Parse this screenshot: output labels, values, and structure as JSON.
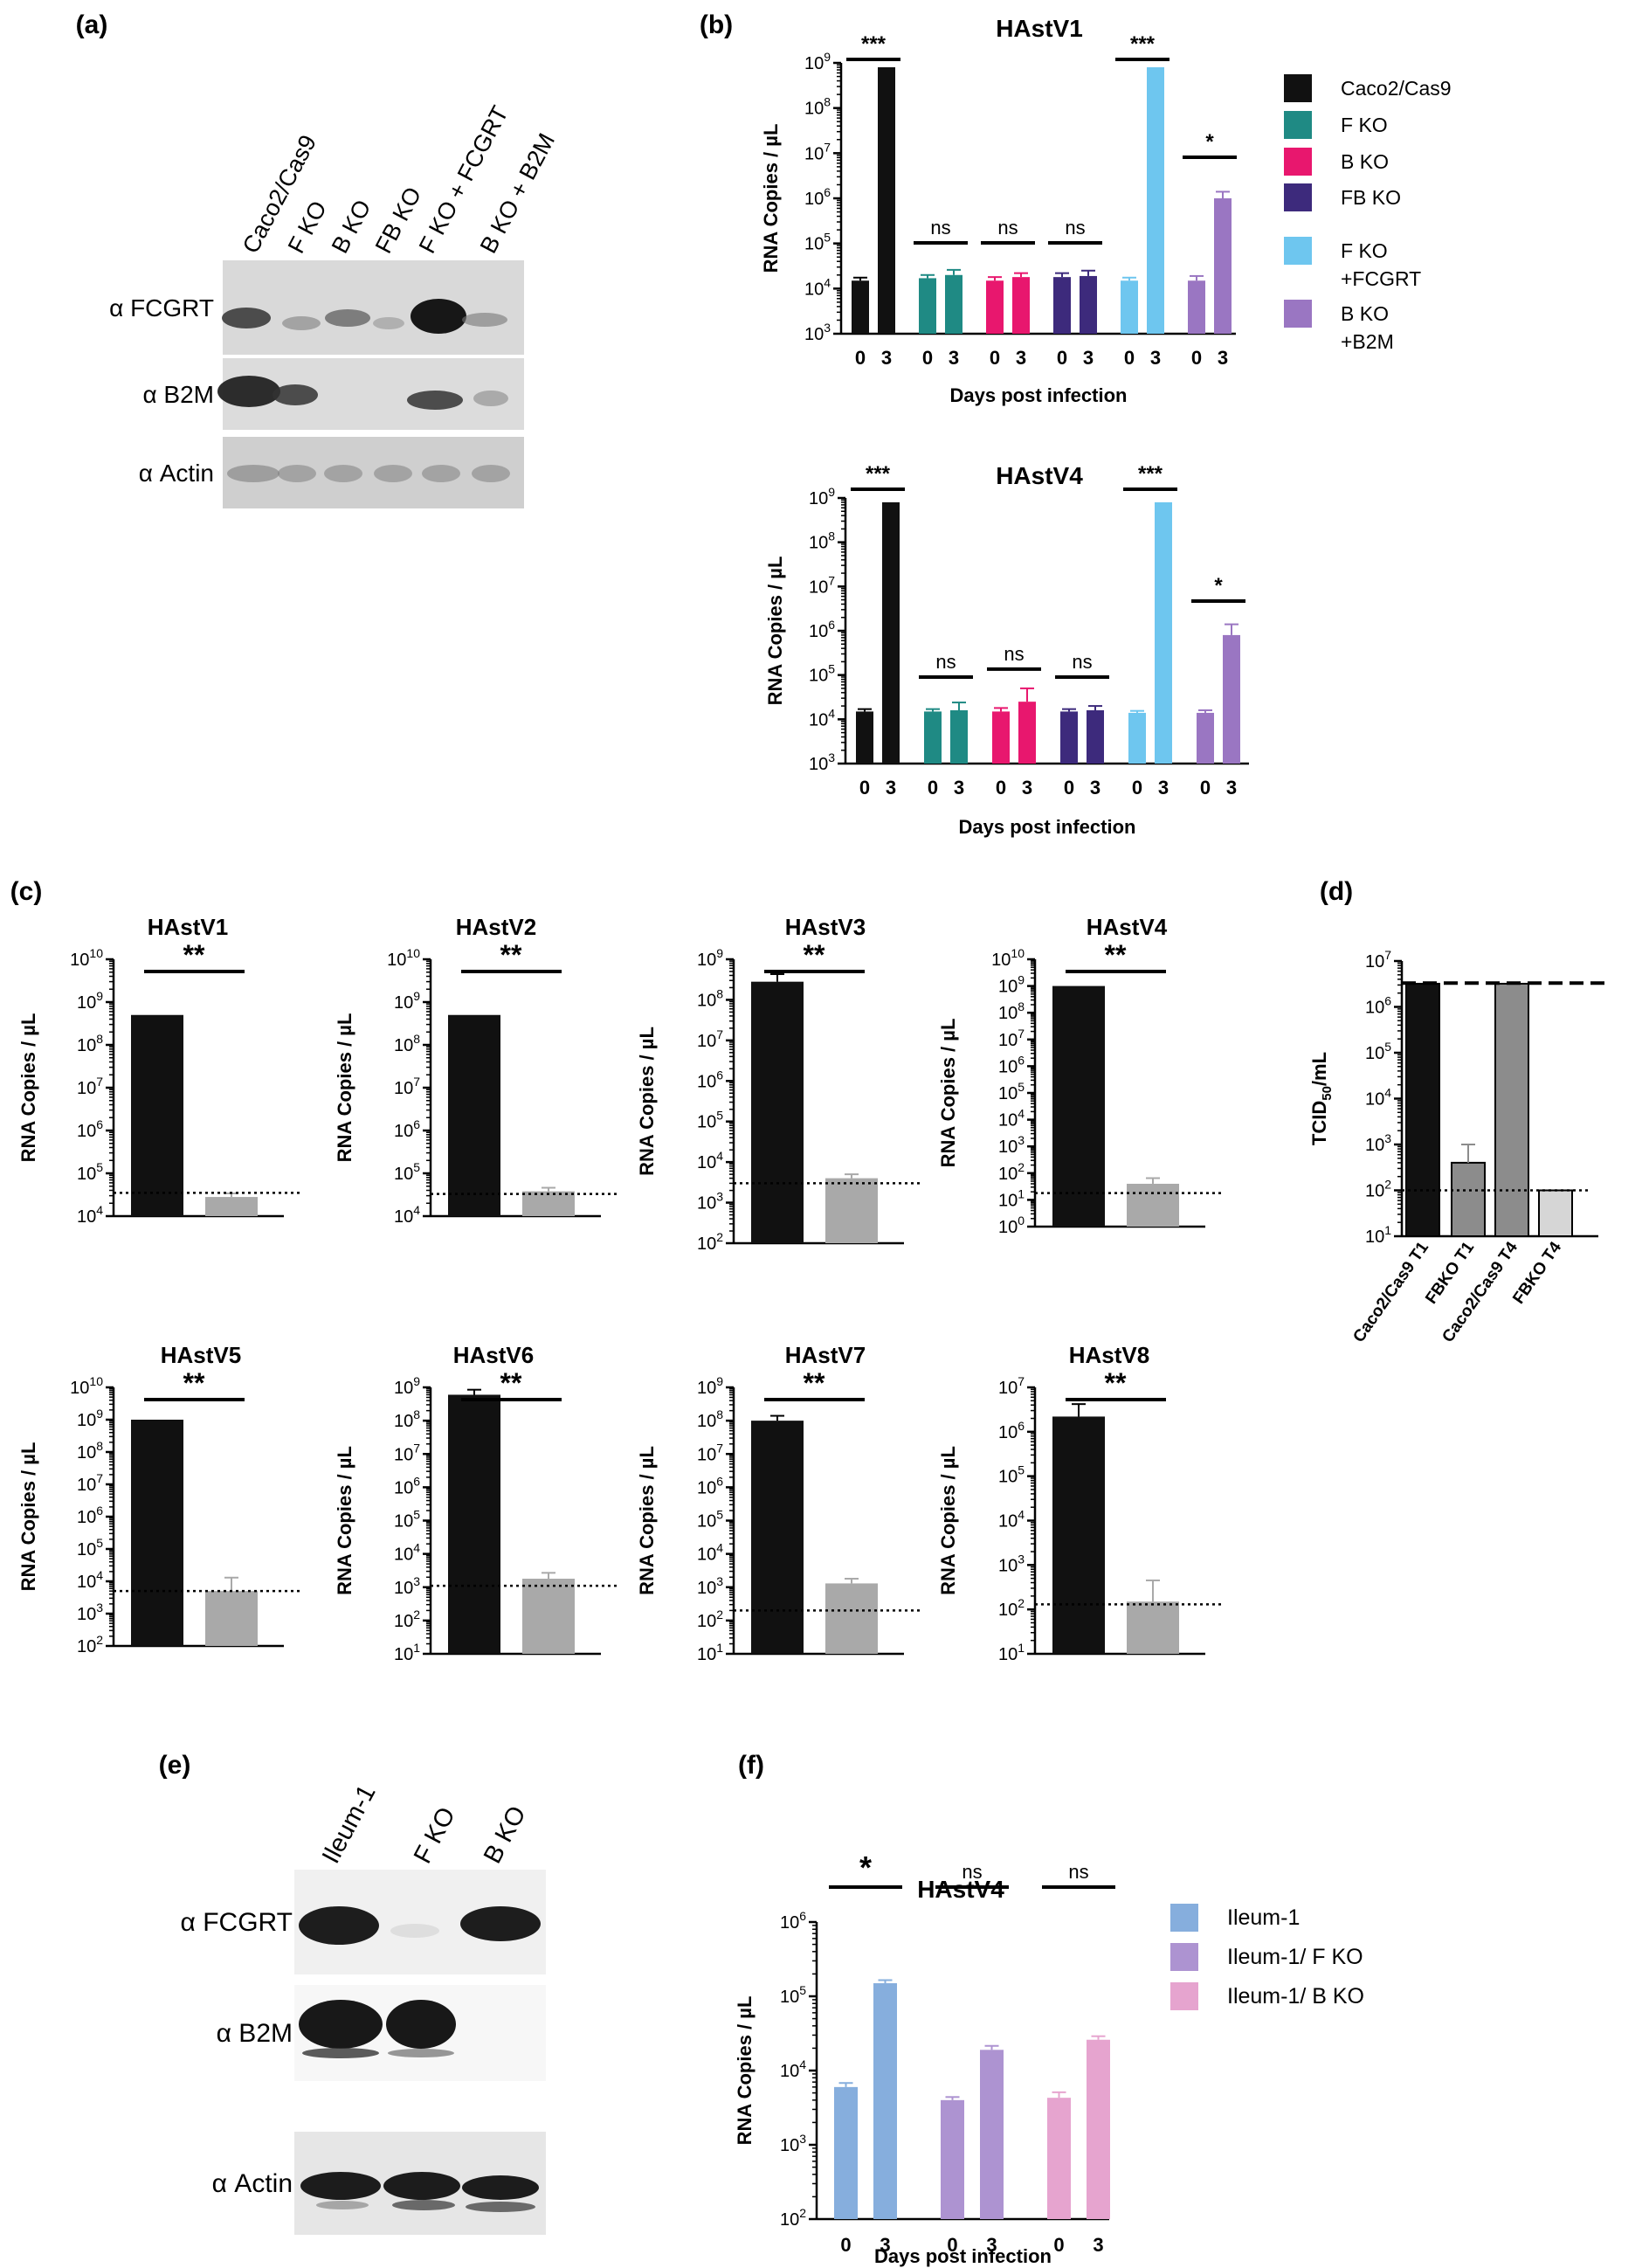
{
  "panel_labels": {
    "a": "(a)",
    "b": "(b)",
    "c": "(c)",
    "d": "(d)",
    "e": "(e)",
    "f": "(f)"
  },
  "colors": {
    "black": "#111111",
    "teal": "#1f8a84",
    "pink": "#e8176e",
    "indigo": "#3d2a7c",
    "lightblue": "#6ec6ef",
    "lavender": "#9a76c2",
    "gray": "#a9a9a9",
    "darkgray": "#8c8c8c",
    "lightgray": "#d6d6d6",
    "f_blue": "#86aedd",
    "f_purple": "#ad93d1",
    "f_pink": "#e6a4cf"
  },
  "blot_a": {
    "lanes": [
      "Caco2/Cas9",
      "F KO",
      "B KO",
      "FB KO",
      "F KO + FCGRT",
      "B KO + B2M"
    ],
    "rows": [
      "α FCGRT",
      "α B2M",
      "α Actin"
    ]
  },
  "blot_e": {
    "lanes": [
      "Ileum-1",
      "F KO",
      "B KO"
    ],
    "rows": [
      "α FCGRT",
      "α B2M",
      "α Actin"
    ]
  },
  "legend_b": [
    "Caco2/Cas9",
    "F KO",
    "B KO",
    "FB KO",
    "F KO\n+FCGRT",
    "B KO\n+B2M"
  ],
  "legend_f": [
    "Ileum-1",
    "Ileum-1/ F KO",
    "Ileum-1/ B KO"
  ],
  "chart_data": [
    {
      "id": "b1",
      "type": "bar",
      "title": "HAstV1",
      "ylabel": "RNA Copies / µL",
      "xlabel": "Days post infection",
      "scale": "log",
      "ylim_exp": [
        3,
        9
      ],
      "groups": [
        {
          "name": "Caco2/Cas9",
          "color": "black",
          "x": [
            "0",
            "3"
          ],
          "values": [
            15000,
            800000000
          ],
          "err": [
            2500,
            0
          ],
          "sig": "***"
        },
        {
          "name": "F KO",
          "color": "teal",
          "x": [
            "0",
            "3"
          ],
          "values": [
            17000,
            20000
          ],
          "err": [
            3000,
            6000
          ],
          "sig": "ns"
        },
        {
          "name": "B KO",
          "color": "pink",
          "x": [
            "0",
            "3"
          ],
          "values": [
            15000,
            18000
          ],
          "err": [
            3000,
            4000
          ],
          "sig": "ns"
        },
        {
          "name": "FB KO",
          "color": "indigo",
          "x": [
            "0",
            "3"
          ],
          "values": [
            18000,
            19000
          ],
          "err": [
            4000,
            6000
          ],
          "sig": "ns"
        },
        {
          "name": "F KO +FCGRT",
          "color": "lightblue",
          "x": [
            "0",
            "3"
          ],
          "values": [
            15000,
            800000000
          ],
          "err": [
            2500,
            0
          ],
          "sig": "***"
        },
        {
          "name": "B KO +B2M",
          "color": "lavender",
          "x": [
            "0",
            "3"
          ],
          "values": [
            15000,
            1000000
          ],
          "err": [
            4000,
            400000
          ],
          "sig": "*"
        }
      ]
    },
    {
      "id": "b4",
      "type": "bar",
      "title": "HAstV4",
      "ylabel": "RNA Copies / µL",
      "xlabel": "Days post infection",
      "scale": "log",
      "ylim_exp": [
        3,
        9
      ],
      "groups": [
        {
          "name": "Caco2/Cas9",
          "color": "black",
          "x": [
            "0",
            "3"
          ],
          "values": [
            15000,
            800000000
          ],
          "err": [
            2000,
            0
          ],
          "sig": "***"
        },
        {
          "name": "F KO",
          "color": "teal",
          "x": [
            "0",
            "3"
          ],
          "values": [
            15000,
            16000
          ],
          "err": [
            2000,
            8000
          ],
          "sig": "ns"
        },
        {
          "name": "B KO",
          "color": "pink",
          "x": [
            "0",
            "3"
          ],
          "values": [
            15000,
            25000
          ],
          "err": [
            3000,
            25000
          ],
          "sig": "ns"
        },
        {
          "name": "FB KO",
          "color": "indigo",
          "x": [
            "0",
            "3"
          ],
          "values": [
            15000,
            16000
          ],
          "err": [
            2000,
            4000
          ],
          "sig": "ns"
        },
        {
          "name": "F KO +FCGRT",
          "color": "lightblue",
          "x": [
            "0",
            "3"
          ],
          "values": [
            14000,
            800000000
          ],
          "err": [
            1500,
            0
          ],
          "sig": "***"
        },
        {
          "name": "B KO +B2M",
          "color": "lavender",
          "x": [
            "0",
            "3"
          ],
          "values": [
            14000,
            800000
          ],
          "err": [
            2000,
            600000
          ],
          "sig": "*"
        }
      ]
    },
    {
      "id": "c1",
      "type": "bar",
      "title": "HAstV1",
      "ylabel": "RNA Copies / µL",
      "scale": "log",
      "ylim_exp": [
        4,
        10
      ],
      "values": [
        500000000,
        28000
      ],
      "err": [
        0,
        6000
      ],
      "threshold": 35000,
      "sig": "**"
    },
    {
      "id": "c2",
      "type": "bar",
      "title": "HAstV2",
      "ylabel": "RNA Copies / µL",
      "scale": "log",
      "ylim_exp": [
        4,
        10
      ],
      "values": [
        500000000,
        38000
      ],
      "err": [
        0,
        8000
      ],
      "threshold": 33000,
      "sig": "**"
    },
    {
      "id": "c3",
      "type": "bar",
      "title": "HAstV3",
      "ylabel": "RNA Copies / µL",
      "scale": "log",
      "ylim_exp": [
        2,
        9
      ],
      "values": [
        280000000,
        4000
      ],
      "err": [
        150000000,
        1000
      ],
      "threshold": 3000,
      "sig": "**"
    },
    {
      "id": "c4",
      "type": "bar",
      "title": "HAstV4",
      "ylabel": "RNA Copies / µL",
      "scale": "log",
      "ylim_exp": [
        0,
        10
      ],
      "values": [
        1000000000,
        40
      ],
      "err": [
        0,
        25
      ],
      "threshold": 18,
      "sig": "**"
    },
    {
      "id": "c5",
      "type": "bar",
      "title": "HAstV5",
      "ylabel": "RNA Copies / µL",
      "scale": "log",
      "ylim_exp": [
        2,
        10
      ],
      "values": [
        1000000000,
        5000
      ],
      "err": [
        0,
        8000
      ],
      "threshold": 5000,
      "sig": "**"
    },
    {
      "id": "c6",
      "type": "bar",
      "title": "HAstV6",
      "ylabel": "RNA Copies / µL",
      "scale": "log",
      "ylim_exp": [
        1,
        9
      ],
      "values": [
        600000000,
        1800
      ],
      "err": [
        250000000,
        900
      ],
      "threshold": 1100,
      "sig": "**"
    },
    {
      "id": "c7",
      "type": "bar",
      "title": "HAstV7",
      "ylabel": "RNA Copies / µL",
      "scale": "log",
      "ylim_exp": [
        1,
        9
      ],
      "values": [
        100000000,
        1300
      ],
      "err": [
        40000000,
        500
      ],
      "threshold": 200,
      "sig": "**"
    },
    {
      "id": "c8",
      "type": "bar",
      "title": "HAstV8",
      "ylabel": "RNA Copies / µL",
      "scale": "log",
      "ylim_exp": [
        1,
        7
      ],
      "values": [
        2200000,
        150
      ],
      "err": [
        2000000,
        300
      ],
      "threshold": 130,
      "sig": "**"
    },
    {
      "id": "d",
      "type": "bar",
      "ylabel": "TCID50/mL",
      "scale": "log",
      "ylim_exp": [
        1,
        7
      ],
      "categories": [
        "Caco2/Cas9 T1",
        "FBKO T1",
        "Caco2/Cas9 T4",
        "FBKO T4"
      ],
      "values": [
        3200000,
        400,
        3200000,
        100
      ],
      "err": [
        0,
        600,
        0,
        0
      ],
      "upper_line": 3300000,
      "lower_line": 100
    },
    {
      "id": "f",
      "type": "bar",
      "title": "HAstV4",
      "ylabel": "RNA Copies / µL",
      "xlabel": "Days post infection",
      "scale": "log",
      "ylim_exp": [
        2,
        6
      ],
      "groups": [
        {
          "name": "Ileum-1",
          "color": "f_blue",
          "x": [
            "0",
            "3"
          ],
          "values": [
            6000,
            150000
          ],
          "err": [
            800,
            15000
          ],
          "sig": "*"
        },
        {
          "name": "Ileum-1/ F KO",
          "color": "f_purple",
          "x": [
            "0",
            "3"
          ],
          "values": [
            4000,
            19000
          ],
          "err": [
            400,
            2500
          ],
          "sig": "ns"
        },
        {
          "name": "Ileum-1/ B KO",
          "color": "f_pink",
          "x": [
            "0",
            "3"
          ],
          "values": [
            4300,
            26000
          ],
          "err": [
            800,
            3000
          ],
          "sig": "ns"
        }
      ]
    }
  ]
}
